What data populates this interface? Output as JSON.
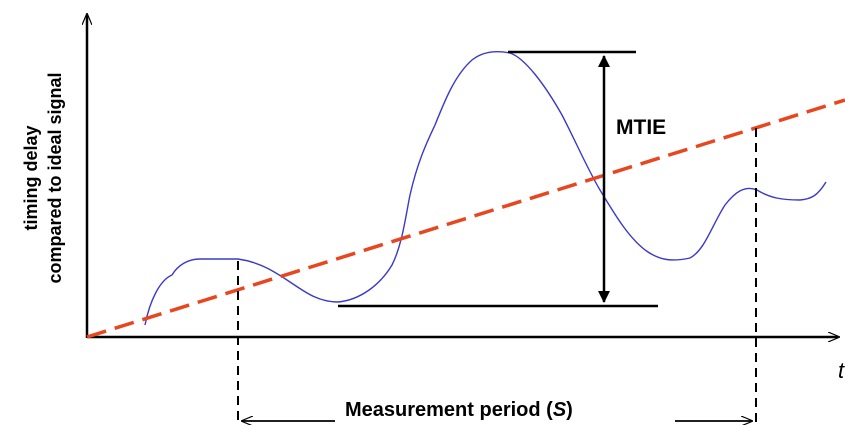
{
  "diagram": {
    "y_axis_label_line1": "timing delay",
    "y_axis_label_line2": "compared to ideal signal",
    "x_axis_label": "t",
    "mtie_label": "MTIE",
    "period_label_prefix": "Measurement period (",
    "period_label_symbol": "S",
    "period_label_suffix": ")",
    "colors": {
      "signal": "#3a3ac8",
      "trend": "#e8461e",
      "axes": "#000000"
    }
  }
}
